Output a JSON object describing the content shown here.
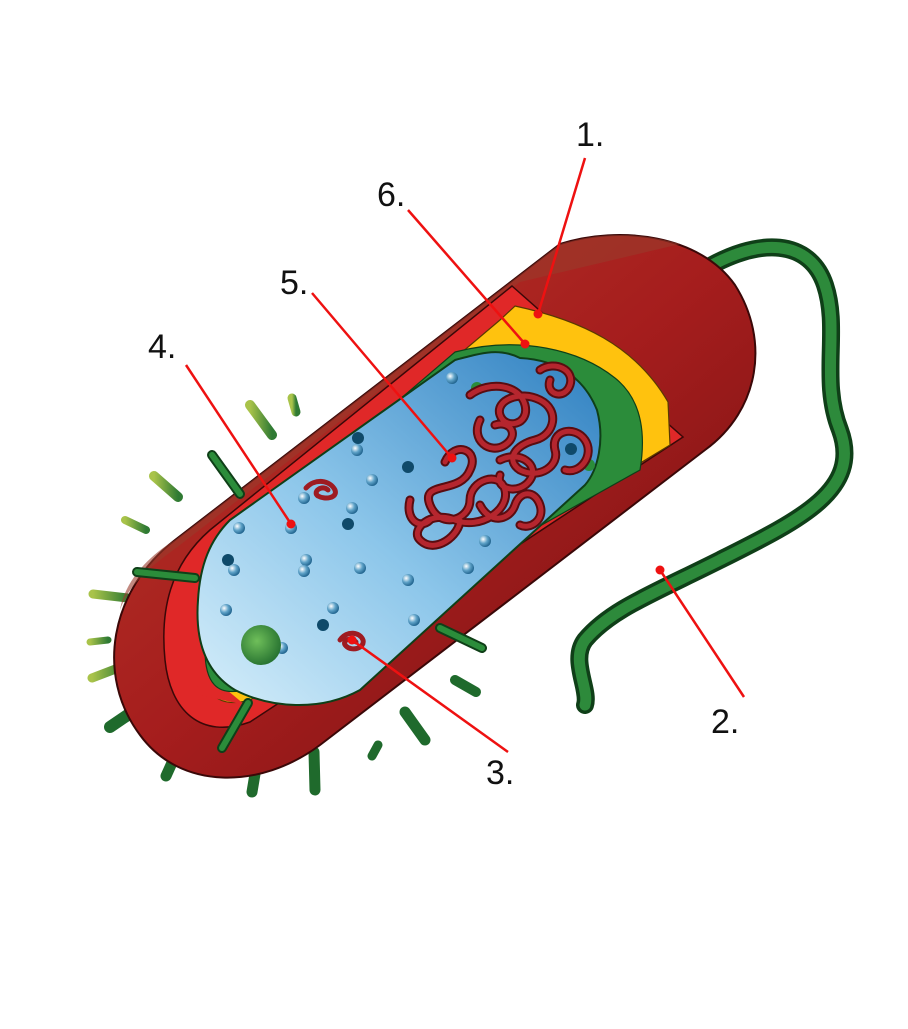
{
  "labels": [
    {
      "id": "1",
      "text": "1."
    },
    {
      "id": "2",
      "text": "2."
    },
    {
      "id": "3",
      "text": "3."
    },
    {
      "id": "4",
      "text": "4."
    },
    {
      "id": "5",
      "text": "5."
    },
    {
      "id": "6",
      "text": "6."
    }
  ],
  "colors": {
    "outer_body": "#a51d1d",
    "outer_body_dark": "#6e1010",
    "cut_layer_red": "#e02828",
    "capsule_yellow": "#ffc20e",
    "cell_wall_green": "#2b8c3a",
    "cytoplasm_light": "#c9e6f7",
    "cytoplasm_dark": "#3b8fcc",
    "dna": "#9e1b22",
    "flagellum": "#1e6b2a",
    "pili": "#1f6a2c",
    "leader_line": "#ee1111"
  }
}
